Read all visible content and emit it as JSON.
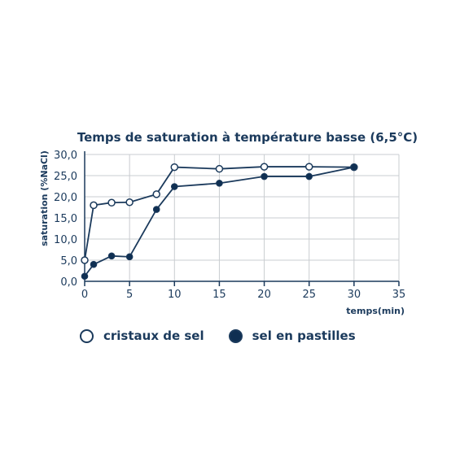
{
  "chart_data": {
    "type": "line",
    "title": "Temps de saturation à température basse (6,5°C)",
    "xlabel": "temps(min)",
    "ylabel": "saturation (%NaCl)",
    "xlim": [
      0,
      35
    ],
    "ylim": [
      0,
      30
    ],
    "x_ticks": [
      "0",
      "5",
      "10",
      "15",
      "20",
      "25",
      "30",
      "35"
    ],
    "y_ticks": [
      "0,0",
      "5,0",
      "10,0",
      "15,0",
      "20,0",
      "25,0",
      "30,0"
    ],
    "grid": true,
    "legend_position": "bottom",
    "colors": {
      "line": "#1b3a5c",
      "grid": "#c9ccd0",
      "filled": "#0f2f52"
    },
    "series": [
      {
        "name": "cristaux de sel",
        "marker": "open",
        "x": [
          0,
          1,
          3,
          5,
          8,
          10,
          15,
          20,
          25,
          30
        ],
        "y": [
          5.0,
          18.0,
          18.6,
          18.7,
          20.6,
          27.0,
          26.6,
          27.1,
          27.1,
          27.0
        ]
      },
      {
        "name": "sel en pastilles",
        "marker": "filled",
        "x": [
          0,
          1,
          3,
          5,
          8,
          10,
          15,
          20,
          25,
          30
        ],
        "y": [
          1.2,
          4.0,
          6.0,
          5.8,
          17.0,
          22.4,
          23.2,
          24.8,
          24.8,
          27.0
        ]
      }
    ]
  }
}
